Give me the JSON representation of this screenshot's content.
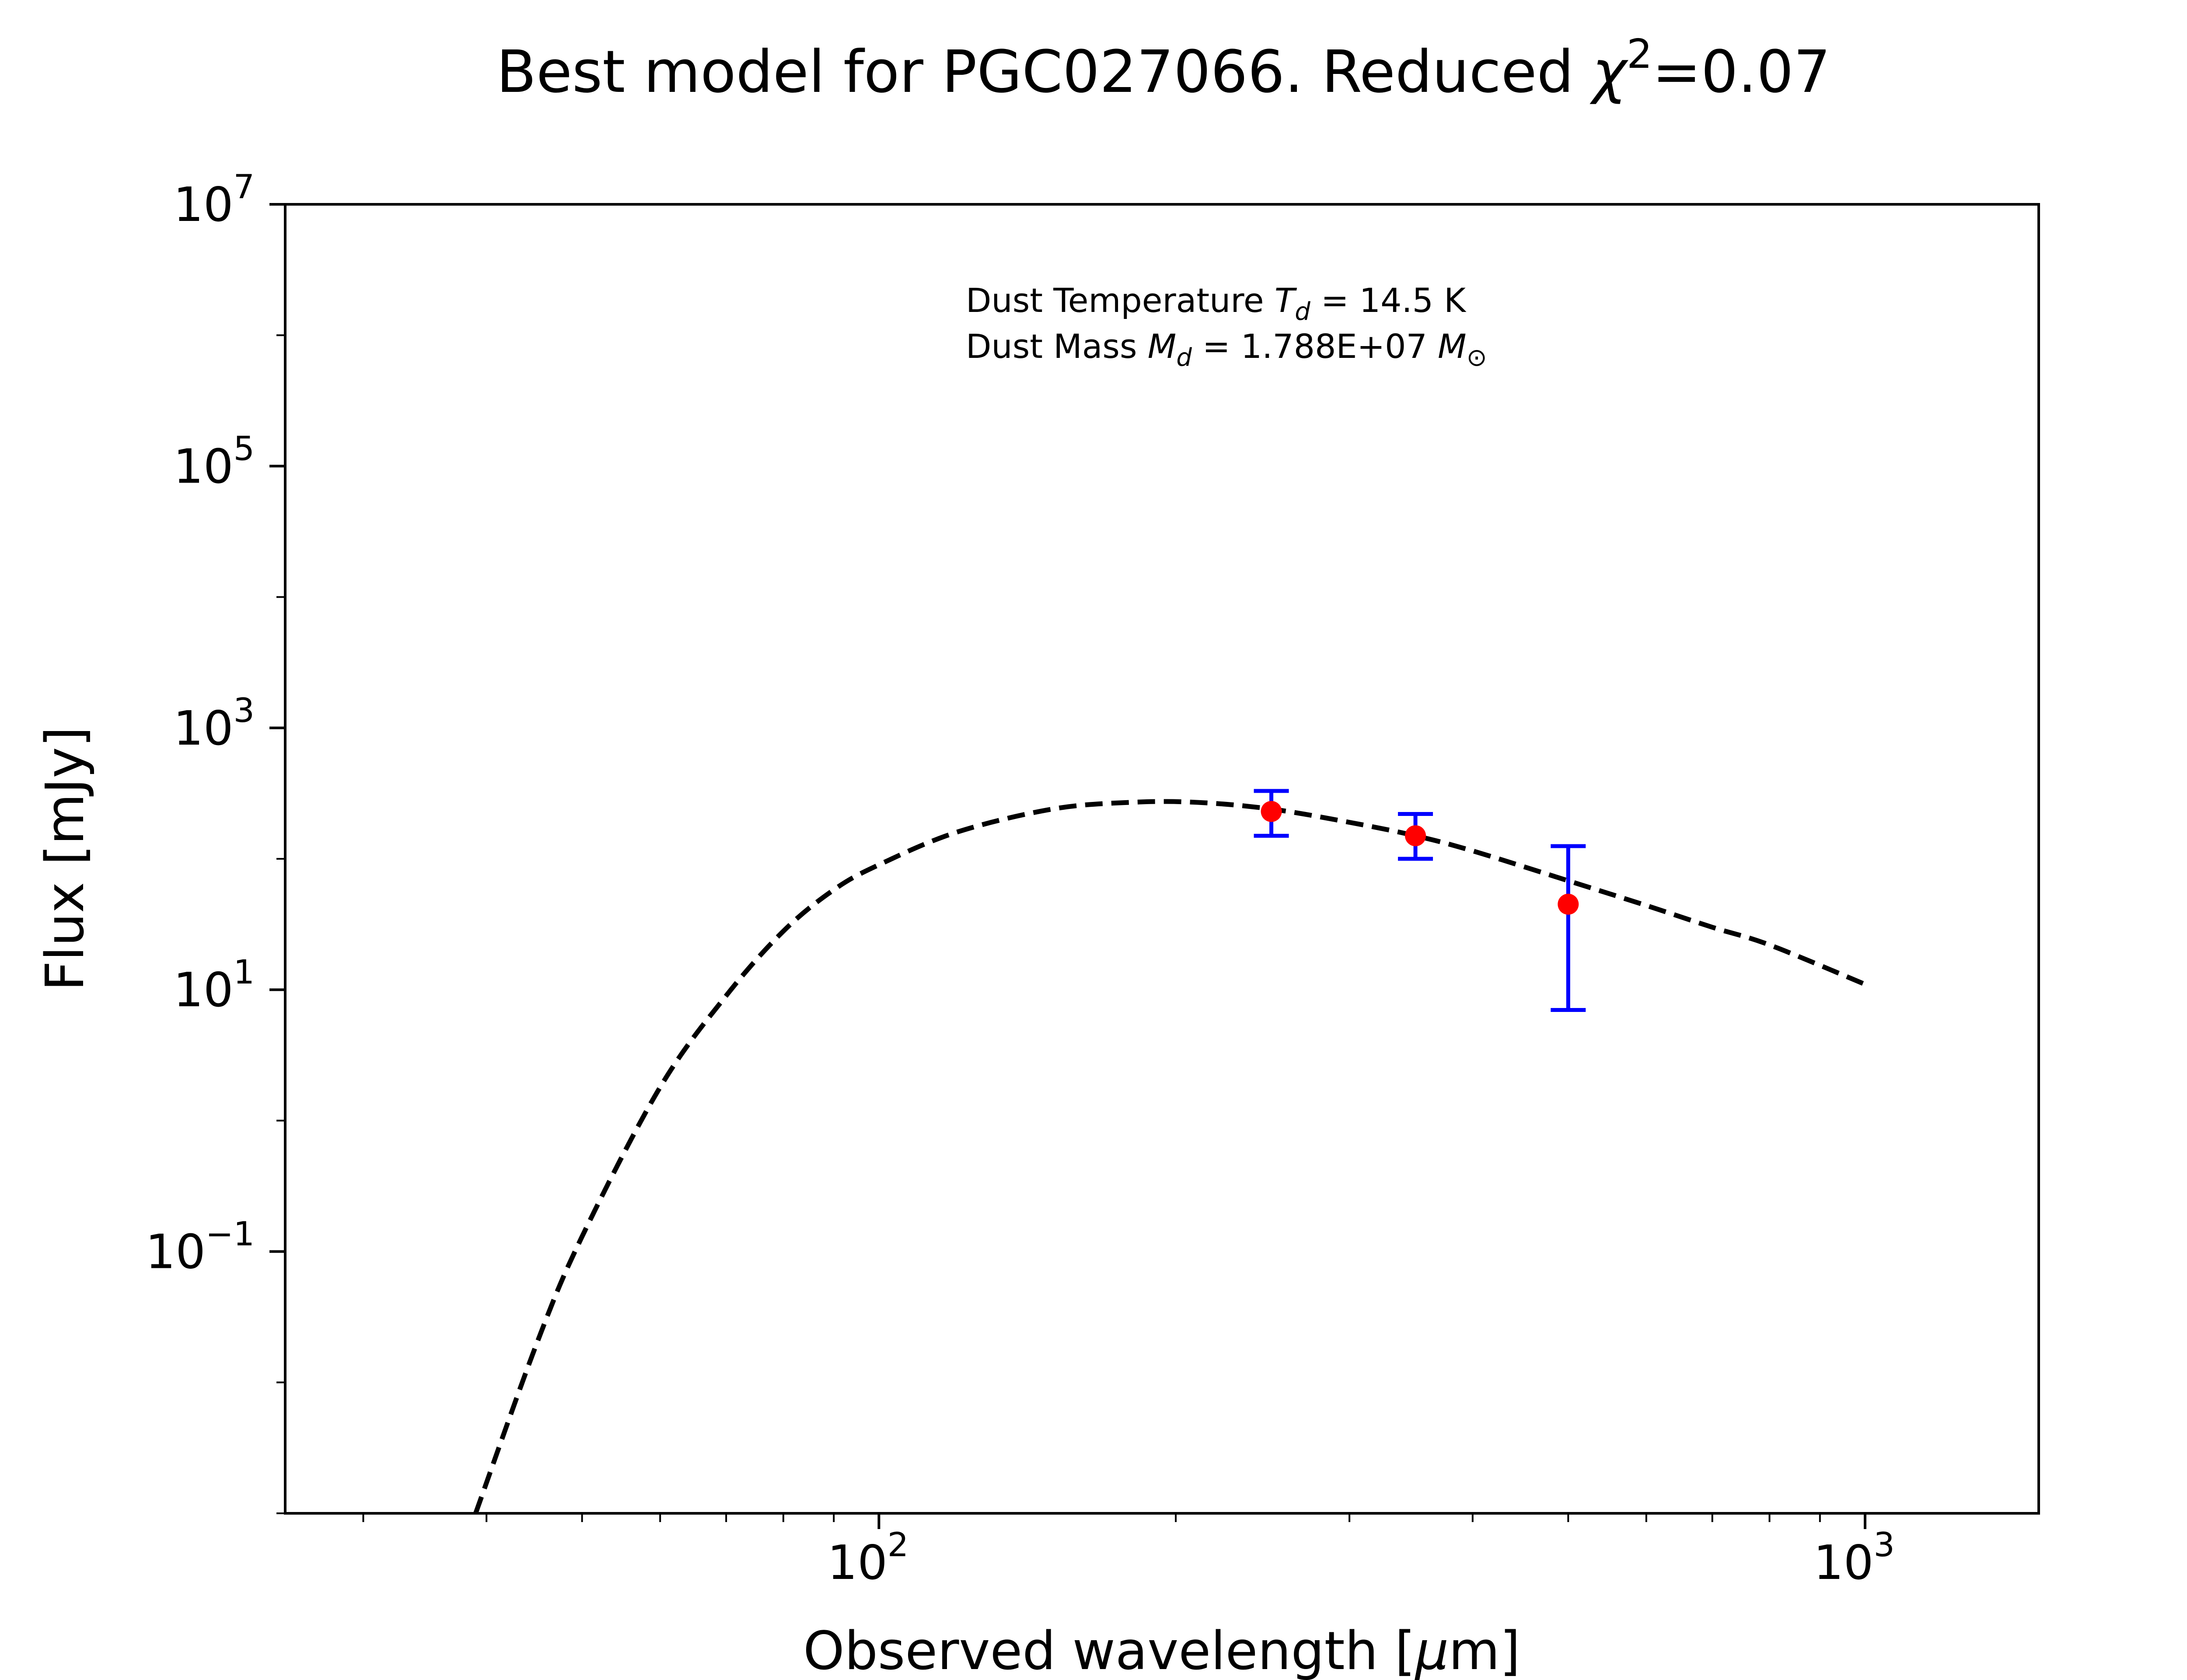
{
  "chart_data": {
    "type": "scatter",
    "title": "Best model for PGC027066. Reduced χ²=0.07",
    "title_parts": {
      "prefix": "Best model for PGC027066. Reduced ",
      "chi": "χ",
      "sup": "2",
      "suffix": "=0.07"
    },
    "xlabel": "Observed wavelength [μm]",
    "xlabel_parts": {
      "prefix": "Observed wavelength [",
      "mu": "μ",
      "suffix": "m]"
    },
    "ylabel": "Flux [mJy]",
    "xscale": "log",
    "yscale": "log",
    "xlim": [
      25,
      1500
    ],
    "ylim": [
      0.001,
      10000000
    ],
    "x_ticks": [
      {
        "value": 100,
        "base": "10",
        "exp": "2"
      },
      {
        "value": 1000,
        "base": "10",
        "exp": "3"
      }
    ],
    "y_ticks": [
      {
        "value": 10000000,
        "base": "10",
        "exp": "7"
      },
      {
        "value": 100000,
        "base": "10",
        "exp": "5"
      },
      {
        "value": 1000,
        "base": "10",
        "exp": "3"
      },
      {
        "value": 10,
        "base": "10",
        "exp": "1"
      },
      {
        "value": 0.1,
        "base": "10",
        "exp": "−1"
      }
    ],
    "annotations": [
      {
        "prefix": "Dust Temperature ",
        "sym": "T",
        "sub": "d",
        "suffix": " = 14.5 K"
      },
      {
        "prefix": "Dust Mass ",
        "sym": "M",
        "sub": "d",
        "suffix": " = 1.788E+07 ",
        "unit": "M",
        "unit_sub": "⊙"
      }
    ],
    "series": [
      {
        "type": "points_with_error",
        "color": "#ff0000",
        "errorbar_color": "#0000ff",
        "x": [
          250,
          350,
          500
        ],
        "y": [
          230,
          150,
          45
        ],
        "yerr_low": [
          150,
          100,
          7
        ],
        "yerr_high": [
          330,
          220,
          125
        ]
      },
      {
        "type": "line",
        "style": "dashed",
        "color": "#000000",
        "x": [
          39,
          45,
          50,
          60,
          70,
          80,
          90,
          100,
          120,
          150,
          180,
          210,
          250,
          300,
          350,
          400,
          500,
          600,
          700,
          800,
          1000
        ],
        "y": [
          0.001,
          0.02,
          0.13,
          1.8,
          9,
          28,
          58,
          90,
          160,
          240,
          270,
          270,
          240,
          190,
          150,
          115,
          68,
          44,
          30,
          22,
          11
        ]
      }
    ]
  }
}
